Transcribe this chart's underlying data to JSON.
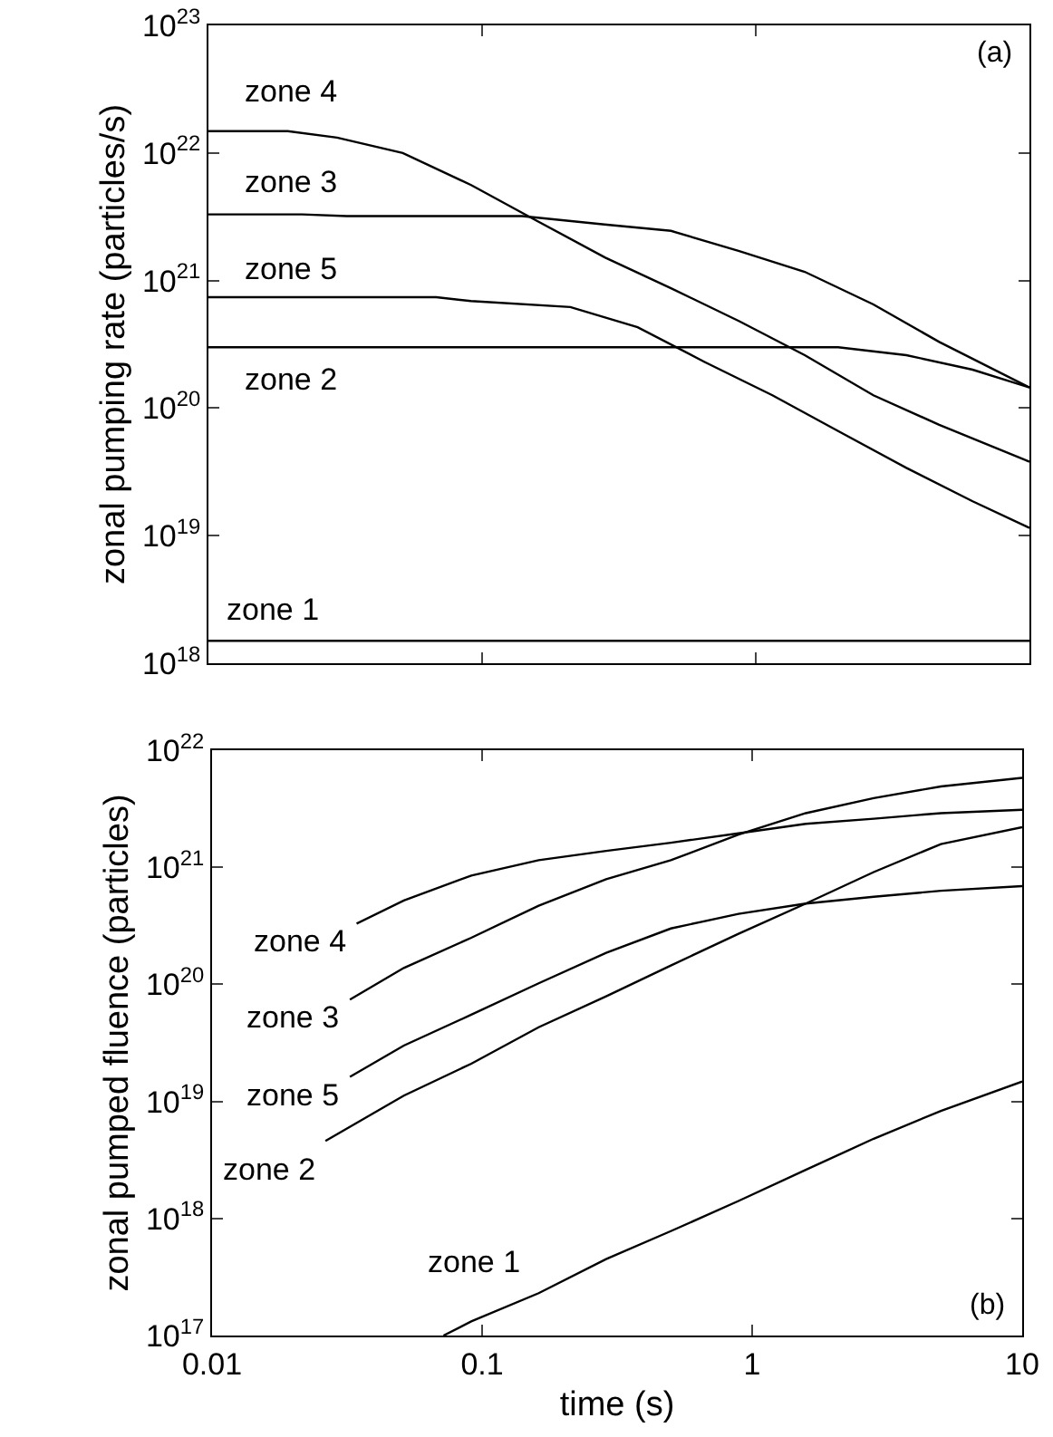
{
  "chart_data": [
    {
      "type": "line",
      "ylabel": "zonal pumping rate (particles/s)",
      "log": "xy",
      "grid": false,
      "legend": false,
      "tick_labels": "y",
      "marker": "none",
      "line_style": "solid",
      "xlim": [
        0.01,
        10
      ],
      "xticks": [
        {
          "value": 0.01,
          "label": null
        },
        {
          "value": 0.1,
          "label": null
        },
        {
          "value": 1,
          "label": null
        },
        {
          "value": 10,
          "label": null
        }
      ],
      "ylim": [
        1e+18,
        1e+23
      ],
      "yticks": [
        {
          "value": 1e+18,
          "label": "10$^{18}$"
        },
        {
          "value": 1e+19,
          "label": "10$^{19}$"
        },
        {
          "value": 1e+20,
          "label": "10$^{20}$"
        },
        {
          "value": 1e+21,
          "label": "10$^{21}$"
        },
        {
          "value": 1e+22,
          "label": "10$^{22}$"
        },
        {
          "value": 1e+23,
          "label": "10$^{23}$"
        }
      ],
      "annotations": [
        "(a)"
      ],
      "series": [
        {
          "name": "zone 4",
          "color": "#000000",
          "x": [
            0.01,
            0.0195,
            0.0295,
            0.0513,
            0.0912,
            0.158,
            0.282,
            0.49,
            0.87,
            1.51,
            2.69,
            4.68,
            10
          ],
          "values": [
            1.48e+22,
            1.48e+22,
            1.32e+22,
            1e+22,
            5.6e+21,
            2.95e+21,
            1.51e+21,
            8.7e+20,
            4.8e+20,
            2.6e+20,
            1.26e+20,
            7.4e+19,
            3.8e+19
          ]
        },
        {
          "name": "zone 3",
          "color": "#000000",
          "x": [
            0.01,
            0.022,
            0.032,
            0.14,
            0.28,
            0.49,
            0.87,
            1.51,
            2.69,
            4.68,
            10
          ],
          "values": [
            3.3e+21,
            3.3e+21,
            3.2e+21,
            3.2e+21,
            2.75e+21,
            2.45e+21,
            1.7e+21,
            1.17e+21,
            6.5e+20,
            3.3e+20,
            1.45e+20
          ]
        },
        {
          "name": "zone 5",
          "color": "#000000",
          "x": [
            0.01,
            0.068,
            0.091,
            0.21,
            0.37,
            0.65,
            1.15,
            2.0,
            3.55,
            6.2,
            10
          ],
          "values": [
            7.4e+20,
            7.4e+20,
            6.9e+20,
            6.2e+20,
            4.3e+20,
            2.3e+20,
            1.26e+20,
            6.6e+19,
            3.4e+19,
            1.86e+19,
            1.15e+19
          ]
        },
        {
          "name": "zone 2",
          "color": "#000000",
          "x": [
            0.01,
            2.0,
            3.55,
            6.2,
            10
          ],
          "values": [
            3e+20,
            3e+20,
            2.6e+20,
            2e+20,
            1.45e+20
          ]
        },
        {
          "name": "zone 1",
          "color": "#000000",
          "x": [
            0.01,
            10
          ],
          "values": [
            1.5e+18,
            1.5e+18
          ]
        }
      ]
    },
    {
      "type": "line",
      "xlabel": "time (s)",
      "ylabel": "zonal pumped fluence (particles)",
      "log": "xy",
      "grid": false,
      "legend": false,
      "marker": "none",
      "line_style": "solid",
      "xlim": [
        0.01,
        10
      ],
      "xticks": [
        0.01,
        0.1,
        1,
        10
      ],
      "ylim": [
        1e+17,
        1e+22
      ],
      "yticks": [
        {
          "value": 1e+17,
          "label": "10$^{17}$"
        },
        {
          "value": 1e+18,
          "label": "10$^{18}$"
        },
        {
          "value": 1e+19,
          "label": "10$^{19}$"
        },
        {
          "value": 1e+20,
          "label": "10$^{20}$"
        },
        {
          "value": 1e+21,
          "label": "10$^{21}$"
        },
        {
          "value": 1e+22,
          "label": "10$^{22}$"
        }
      ],
      "annotations": [
        "(b)"
      ],
      "series": [
        {
          "name": "zone 4",
          "color": "#000000",
          "x": [
            0.0343,
            0.0513,
            0.0912,
            0.162,
            0.288,
            0.5,
            0.89,
            1.58,
            2.82,
            5.0,
            10
          ],
          "values": [
            3.3e+20,
            5.2e+20,
            8.5e+20,
            1.15e+21,
            1.38e+21,
            1.62e+21,
            1.95e+21,
            2.35e+21,
            2.6e+21,
            2.9e+21,
            3.1e+21
          ]
        },
        {
          "name": "zone 3",
          "color": "#000000",
          "x": [
            0.0324,
            0.0513,
            0.0912,
            0.162,
            0.288,
            0.5,
            0.89,
            1.58,
            2.82,
            5.0,
            10
          ],
          "values": [
            7.4e+19,
            1.38e+20,
            2.5e+20,
            4.7e+20,
            7.9e+20,
            1.15e+21,
            1.9e+21,
            2.9e+21,
            3.9e+21,
            4.9e+21,
            5.8e+21
          ]
        },
        {
          "name": "zone 5",
          "color": "#000000",
          "x": [
            0.0324,
            0.0513,
            0.0912,
            0.162,
            0.288,
            0.5,
            0.89,
            1.58,
            2.82,
            5.0,
            10
          ],
          "values": [
            1.62e+19,
            3e+19,
            5.5e+19,
            1.02e+20,
            1.86e+20,
            3e+20,
            4e+20,
            4.9e+20,
            5.6e+20,
            6.3e+20,
            6.9e+20
          ]
        },
        {
          "name": "zone 2",
          "color": "#000000",
          "x": [
            0.0263,
            0.0513,
            0.0912,
            0.162,
            0.288,
            0.5,
            0.89,
            1.58,
            2.82,
            5.0,
            10
          ],
          "values": [
            4.6e+18,
            1.12e+19,
            2.1e+19,
            4.3e+19,
            7.9e+19,
            1.45e+20,
            2.7e+20,
            4.9e+20,
            9.1e+20,
            1.58e+21,
            2.2e+21
          ]
        },
        {
          "name": "zone 1",
          "color": "#000000",
          "x": [
            0.072,
            0.0912,
            0.162,
            0.288,
            0.5,
            0.89,
            1.58,
            2.82,
            5.0,
            10
          ],
          "values": [
            1e+17,
            1.32e+17,
            2.3e+17,
            4.5e+17,
            7.8e+17,
            1.41e+18,
            2.6e+18,
            4.8e+18,
            8.3e+18,
            1.48e+19
          ]
        }
      ]
    }
  ]
}
